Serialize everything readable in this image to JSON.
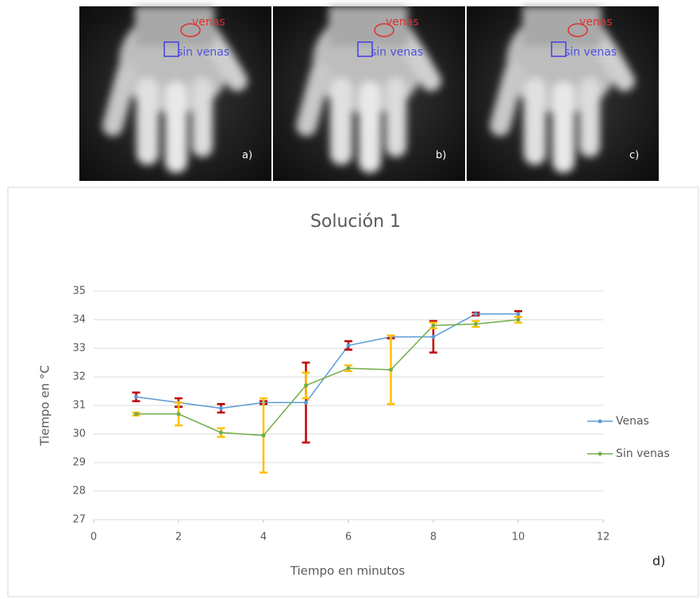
{
  "images": [
    {
      "label": "a)",
      "red_label": "venas",
      "blue_label": "sin venas"
    },
    {
      "label": "b)",
      "red_label": "venas",
      "blue_label": "sin venas"
    },
    {
      "label": "c)",
      "red_label": "venas",
      "blue_label": "sin venas"
    }
  ],
  "panel_label": "d)",
  "chart_data": {
    "type": "line",
    "title": "Solución 1",
    "x_label": "Tiempo en minutos",
    "y_label": "Tiempo en °C",
    "x": [
      1,
      2,
      3,
      4,
      5,
      6,
      7,
      8,
      9,
      10
    ],
    "series": [
      {
        "name": "Venas",
        "color": "#5b9bd5",
        "error_color": "#c00000",
        "values": [
          31.3,
          31.1,
          30.9,
          31.1,
          31.1,
          33.1,
          33.4,
          33.4,
          34.2,
          34.2
        ],
        "errors": [
          0.15,
          0.15,
          0.15,
          0.05,
          1.4,
          0.15,
          0.05,
          0.55,
          0.05,
          0.1
        ]
      },
      {
        "name": "Sin venas",
        "color": "#70ad47",
        "error_color": "#ffc000",
        "values": [
          30.7,
          30.7,
          30.05,
          29.95,
          31.7,
          32.3,
          32.25,
          33.8,
          33.85,
          34.0
        ],
        "errors": [
          0.05,
          0.4,
          0.15,
          1.3,
          0.45,
          0.1,
          1.2,
          0.1,
          0.1,
          0.1
        ]
      }
    ],
    "xlim": [
      0,
      12
    ],
    "xticks": [
      0,
      2,
      4,
      6,
      8,
      10,
      12
    ],
    "ylim": [
      27,
      35
    ],
    "yticks": [
      27,
      28,
      29,
      30,
      31,
      32,
      33,
      34,
      35
    ],
    "grid": true,
    "legend": "right"
  }
}
